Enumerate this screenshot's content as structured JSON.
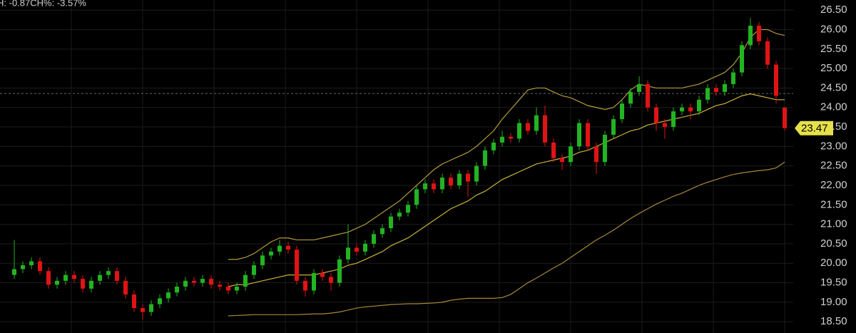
{
  "chart_data": {
    "type": "candlestick",
    "header": "H: -0.87CH%: -3.57%",
    "open": [
      19.7,
      19.85,
      19.95,
      20.05,
      19.8,
      19.45,
      19.55,
      19.7,
      19.6,
      19.35,
      19.55,
      19.7,
      19.8,
      19.55,
      19.2,
      18.85,
      18.75,
      18.95,
      19.1,
      19.25,
      19.4,
      19.55,
      19.5,
      19.6,
      19.45,
      19.4,
      19.3,
      19.4,
      19.7,
      19.95,
      20.2,
      20.3,
      20.45,
      20.35,
      19.55,
      19.3,
      19.75,
      19.65,
      19.5,
      20.1,
      20.4,
      20.3,
      20.5,
      20.75,
      20.9,
      21.2,
      21.3,
      21.5,
      21.9,
      22.05,
      21.9,
      22.2,
      22.0,
      22.3,
      22.1,
      22.5,
      22.9,
      23.1,
      23.25,
      23.2,
      23.6,
      23.4,
      23.8,
      23.1,
      22.7,
      22.6,
      23.0,
      23.6,
      23.0,
      22.6,
      23.3,
      23.7,
      24.1,
      24.4,
      24.6,
      24.0,
      23.6,
      23.5,
      23.9,
      24.0,
      23.9,
      24.2,
      24.5,
      24.4,
      24.6,
      24.9,
      25.6,
      26.1,
      25.7,
      25.1,
      24.0
    ],
    "high": [
      20.6,
      20.05,
      20.15,
      20.15,
      19.9,
      19.65,
      19.8,
      19.8,
      19.7,
      19.65,
      19.8,
      19.9,
      19.9,
      19.65,
      19.3,
      18.95,
      19.05,
      19.2,
      19.35,
      19.5,
      19.65,
      19.65,
      19.7,
      19.7,
      19.55,
      19.5,
      19.5,
      19.8,
      20.05,
      20.3,
      20.4,
      20.6,
      20.55,
      20.45,
      19.65,
      19.85,
      19.85,
      19.75,
      20.2,
      21.0,
      20.5,
      20.6,
      20.85,
      21.0,
      21.3,
      21.4,
      21.6,
      22.0,
      22.15,
      22.15,
      22.3,
      22.3,
      22.4,
      22.4,
      22.6,
      23.0,
      23.2,
      23.4,
      23.35,
      23.7,
      23.7,
      24.0,
      24.05,
      23.2,
      22.8,
      23.1,
      23.7,
      23.7,
      23.1,
      23.4,
      23.8,
      24.2,
      24.5,
      24.8,
      24.7,
      24.1,
      23.7,
      24.0,
      24.1,
      24.1,
      24.3,
      24.6,
      24.6,
      24.7,
      25.0,
      25.7,
      26.3,
      26.2,
      25.8,
      25.2,
      24.0
    ],
    "low": [
      19.6,
      19.75,
      19.85,
      19.7,
      19.35,
      19.35,
      19.45,
      19.5,
      19.25,
      19.25,
      19.45,
      19.6,
      19.45,
      19.1,
      18.75,
      18.55,
      18.65,
      18.85,
      19.0,
      19.15,
      19.3,
      19.4,
      19.4,
      19.35,
      19.3,
      19.2,
      19.2,
      19.3,
      19.6,
      19.85,
      20.1,
      20.2,
      20.25,
      19.45,
      19.15,
      19.2,
      19.55,
      19.3,
      19.4,
      20.0,
      20.2,
      20.2,
      20.4,
      20.65,
      20.8,
      21.1,
      21.2,
      21.4,
      21.8,
      21.8,
      21.8,
      21.9,
      21.9,
      21.7,
      22.0,
      22.4,
      22.8,
      23.0,
      23.1,
      23.1,
      23.3,
      23.3,
      23.0,
      22.6,
      22.4,
      22.5,
      22.9,
      22.9,
      22.3,
      22.5,
      23.2,
      23.6,
      24.0,
      24.3,
      23.9,
      23.4,
      23.2,
      23.4,
      23.8,
      23.7,
      23.8,
      24.1,
      24.3,
      24.3,
      24.5,
      24.8,
      25.5,
      25.6,
      25.0,
      24.1,
      23.4
    ],
    "close": [
      19.85,
      19.95,
      20.05,
      19.8,
      19.45,
      19.55,
      19.7,
      19.6,
      19.35,
      19.55,
      19.7,
      19.8,
      19.55,
      19.2,
      18.85,
      18.75,
      18.95,
      19.1,
      19.25,
      19.4,
      19.55,
      19.5,
      19.6,
      19.45,
      19.4,
      19.3,
      19.4,
      19.7,
      19.95,
      20.2,
      20.3,
      20.45,
      20.35,
      19.55,
      19.3,
      19.75,
      19.65,
      19.5,
      20.1,
      20.4,
      20.3,
      20.5,
      20.75,
      20.9,
      21.2,
      21.3,
      21.5,
      21.9,
      22.05,
      21.9,
      22.2,
      22.0,
      22.3,
      22.1,
      22.5,
      22.9,
      23.1,
      23.25,
      23.2,
      23.6,
      23.4,
      23.8,
      23.1,
      22.7,
      22.6,
      23.0,
      23.6,
      23.0,
      22.6,
      23.3,
      23.7,
      24.1,
      24.4,
      24.6,
      24.0,
      23.6,
      23.5,
      23.9,
      24.0,
      23.9,
      24.2,
      24.5,
      24.4,
      24.6,
      24.9,
      25.6,
      26.1,
      25.7,
      25.1,
      24.3,
      23.47
    ],
    "up_color": "#22b422",
    "down_color": "#e01414",
    "lines": [
      {
        "color": "#b39a3c",
        "values": [
          null,
          null,
          null,
          null,
          null,
          null,
          null,
          null,
          null,
          null,
          null,
          null,
          null,
          null,
          null,
          null,
          null,
          null,
          null,
          null,
          null,
          null,
          null,
          null,
          null,
          20.1,
          20.1,
          20.15,
          20.25,
          20.4,
          20.55,
          20.65,
          20.65,
          20.6,
          20.6,
          20.6,
          20.65,
          20.7,
          20.75,
          20.8,
          20.9,
          21.0,
          21.15,
          21.3,
          21.45,
          21.6,
          21.8,
          22.0,
          22.2,
          22.4,
          22.55,
          22.65,
          22.75,
          22.85,
          23.0,
          23.2,
          23.4,
          23.7,
          23.95,
          24.2,
          24.45,
          24.5,
          24.5,
          24.4,
          24.3,
          24.25,
          24.15,
          24.05,
          24.0,
          23.95,
          24.0,
          24.2,
          24.45,
          24.6,
          24.55,
          24.5,
          24.5,
          24.5,
          24.5,
          24.55,
          24.6,
          24.7,
          24.8,
          24.9,
          25.1,
          25.4,
          25.8,
          26.0,
          26.0,
          25.9,
          25.85
        ]
      },
      {
        "color": "#c9b23a",
        "values": [
          null,
          null,
          null,
          null,
          null,
          null,
          null,
          null,
          null,
          null,
          null,
          null,
          null,
          null,
          null,
          null,
          null,
          null,
          null,
          null,
          null,
          null,
          null,
          null,
          null,
          19.4,
          19.45,
          19.45,
          19.5,
          19.55,
          19.6,
          19.65,
          19.7,
          19.7,
          19.7,
          19.7,
          19.75,
          19.8,
          19.85,
          19.95,
          20.0,
          20.1,
          20.2,
          20.3,
          20.45,
          20.55,
          20.65,
          20.8,
          20.95,
          21.1,
          21.25,
          21.4,
          21.5,
          21.6,
          21.75,
          21.85,
          22.0,
          22.15,
          22.25,
          22.35,
          22.45,
          22.55,
          22.6,
          22.65,
          22.7,
          22.75,
          22.85,
          22.9,
          23.0,
          23.1,
          23.2,
          23.3,
          23.4,
          23.45,
          23.55,
          23.6,
          23.65,
          23.7,
          23.75,
          23.8,
          23.85,
          23.95,
          24.05,
          24.1,
          24.2,
          24.3,
          24.35,
          24.3,
          24.25,
          24.2,
          24.2
        ]
      },
      {
        "color": "#a8873a",
        "values": [
          null,
          null,
          null,
          null,
          null,
          null,
          null,
          null,
          null,
          null,
          null,
          null,
          null,
          null,
          null,
          null,
          null,
          null,
          null,
          null,
          null,
          null,
          null,
          null,
          null,
          18.65,
          18.66,
          18.67,
          18.68,
          18.68,
          18.68,
          18.68,
          18.68,
          18.68,
          18.69,
          18.7,
          18.7,
          18.72,
          18.75,
          18.8,
          18.85,
          18.88,
          18.9,
          18.92,
          18.94,
          18.95,
          18.96,
          18.96,
          18.97,
          18.98,
          19.0,
          19.05,
          19.08,
          19.1,
          19.1,
          19.1,
          19.1,
          19.12,
          19.2,
          19.35,
          19.5,
          19.62,
          19.75,
          19.88,
          20.0,
          20.15,
          20.3,
          20.45,
          20.6,
          20.72,
          20.85,
          21.0,
          21.15,
          21.28,
          21.4,
          21.52,
          21.62,
          21.72,
          21.8,
          21.9,
          22.0,
          22.08,
          22.15,
          22.22,
          22.28,
          22.32,
          22.35,
          22.38,
          22.4,
          22.45,
          22.6
        ]
      }
    ],
    "ref_line": 24.36,
    "last_price": 23.47,
    "ylim": [
      18.21,
      26.76
    ],
    "yticks": [
      {
        "value": 18.5,
        "label": "18.50"
      },
      {
        "value": 19,
        "label": "19.00"
      },
      {
        "value": 19.5,
        "label": "19.50"
      },
      {
        "value": 20,
        "label": "20.00"
      },
      {
        "value": 20.5,
        "label": "20.50"
      },
      {
        "value": 21,
        "label": "21.00"
      },
      {
        "value": 21.5,
        "label": "21.50"
      },
      {
        "value": 22,
        "label": "22.00"
      },
      {
        "value": 22.5,
        "label": "22.50"
      },
      {
        "value": 23,
        "label": "23.00"
      },
      {
        "value": 23.5,
        "label": "23.50"
      },
      {
        "value": 24,
        "label": "24.00"
      },
      {
        "value": 24.5,
        "label": "24.50"
      },
      {
        "value": 25,
        "label": "25.00"
      },
      {
        "value": 25.5,
        "label": "25.50"
      },
      {
        "value": 26,
        "label": "26.00"
      },
      {
        "value": 26.5,
        "label": "26.50"
      }
    ],
    "grid": true
  }
}
